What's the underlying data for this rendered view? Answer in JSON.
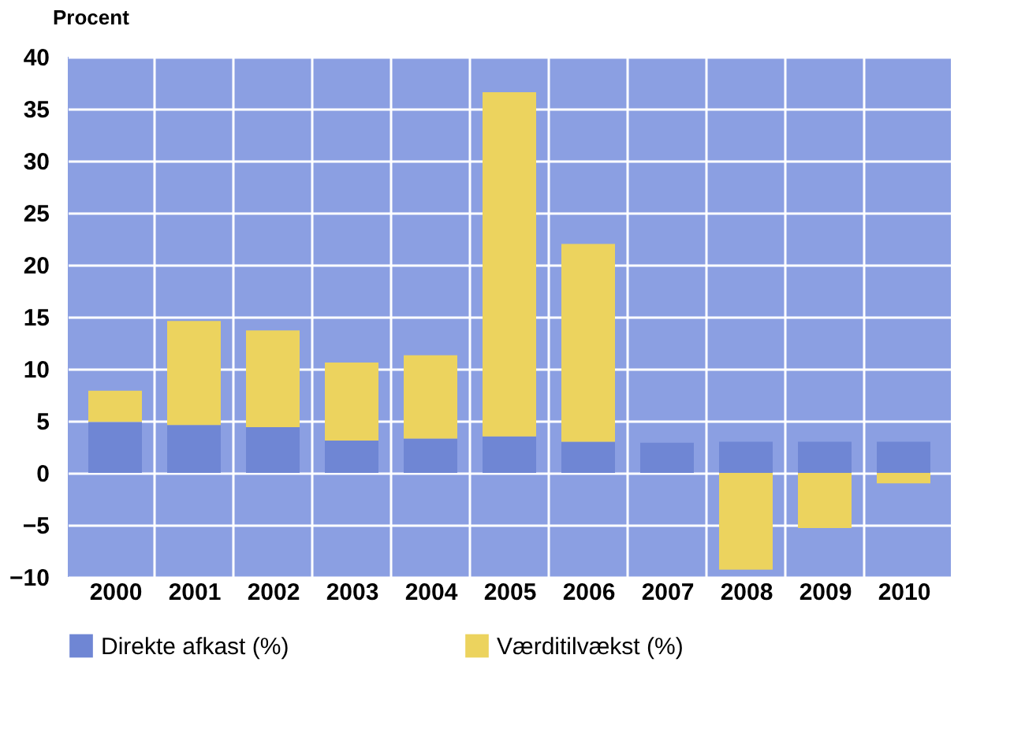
{
  "chart_data": {
    "type": "bar",
    "stacked": true,
    "ylabel": "Procent",
    "categories": [
      "2000",
      "2001",
      "2002",
      "2003",
      "2004",
      "2005",
      "2006",
      "2007",
      "2008",
      "2009",
      "2010"
    ],
    "series": [
      {
        "name": "Direkte afkast (%)",
        "color": "#6f86d4",
        "values": [
          4.9,
          4.6,
          4.4,
          3.1,
          3.3,
          3.5,
          3.0,
          2.9,
          3.0,
          3.0,
          3.0
        ]
      },
      {
        "name": "Værditilvækst (%)",
        "color": "#ecd35e",
        "values": [
          3.0,
          10.0,
          9.3,
          7.5,
          8.0,
          33.1,
          19.0,
          0,
          -9.3,
          -5.3,
          -1.0
        ]
      }
    ],
    "ylim": [
      -10,
      40
    ],
    "yticks": [
      -10,
      -5,
      0,
      5,
      10,
      15,
      20,
      25,
      30,
      35,
      40
    ],
    "grid": true,
    "legend": "bottom"
  }
}
